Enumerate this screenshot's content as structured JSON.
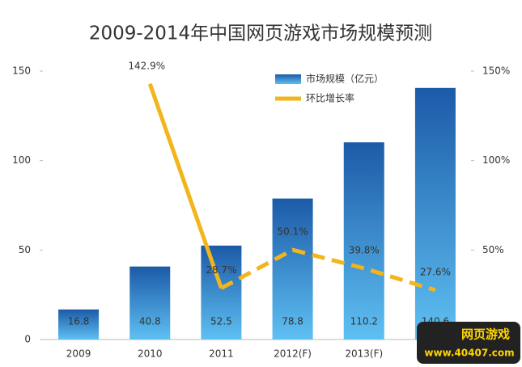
{
  "chart_data": {
    "type": "bar",
    "title": "2009-2014年中国网页游戏市场规模预测",
    "categories": [
      "2009",
      "2010",
      "2011",
      "2012(F)",
      "2013(F)",
      null
    ],
    "series": [
      {
        "name": "市场规模（亿元）",
        "color": "#2a6fc0",
        "values": [
          16.8,
          40.8,
          52.5,
          78.8,
          110.2,
          140.6
        ]
      },
      {
        "name": "环比增长率",
        "type": "line",
        "axis": "y2",
        "color": "#f2b51c",
        "values": [
          null,
          142.9,
          28.7,
          50.1,
          39.8,
          27.6
        ],
        "value_labels": [
          null,
          "142.9%",
          "28.7%",
          "50.1%",
          "39.8%",
          "27.6%"
        ],
        "styles": [
          null,
          "solid",
          "solid",
          "dashed",
          "dashed",
          "dashed"
        ]
      }
    ],
    "ylim": [
      0,
      150
    ],
    "yticks": [
      0,
      50,
      100,
      150
    ],
    "y2lim": [
      0,
      150
    ],
    "y2ticks": [
      {
        "value": 50,
        "label": "50%"
      },
      {
        "value": 100,
        "label": "100%"
      },
      {
        "value": 150,
        "label": "150%"
      }
    ],
    "legend": "top"
  },
  "watermark": {
    "title": "网页游戏",
    "url": "www.40407.com"
  }
}
